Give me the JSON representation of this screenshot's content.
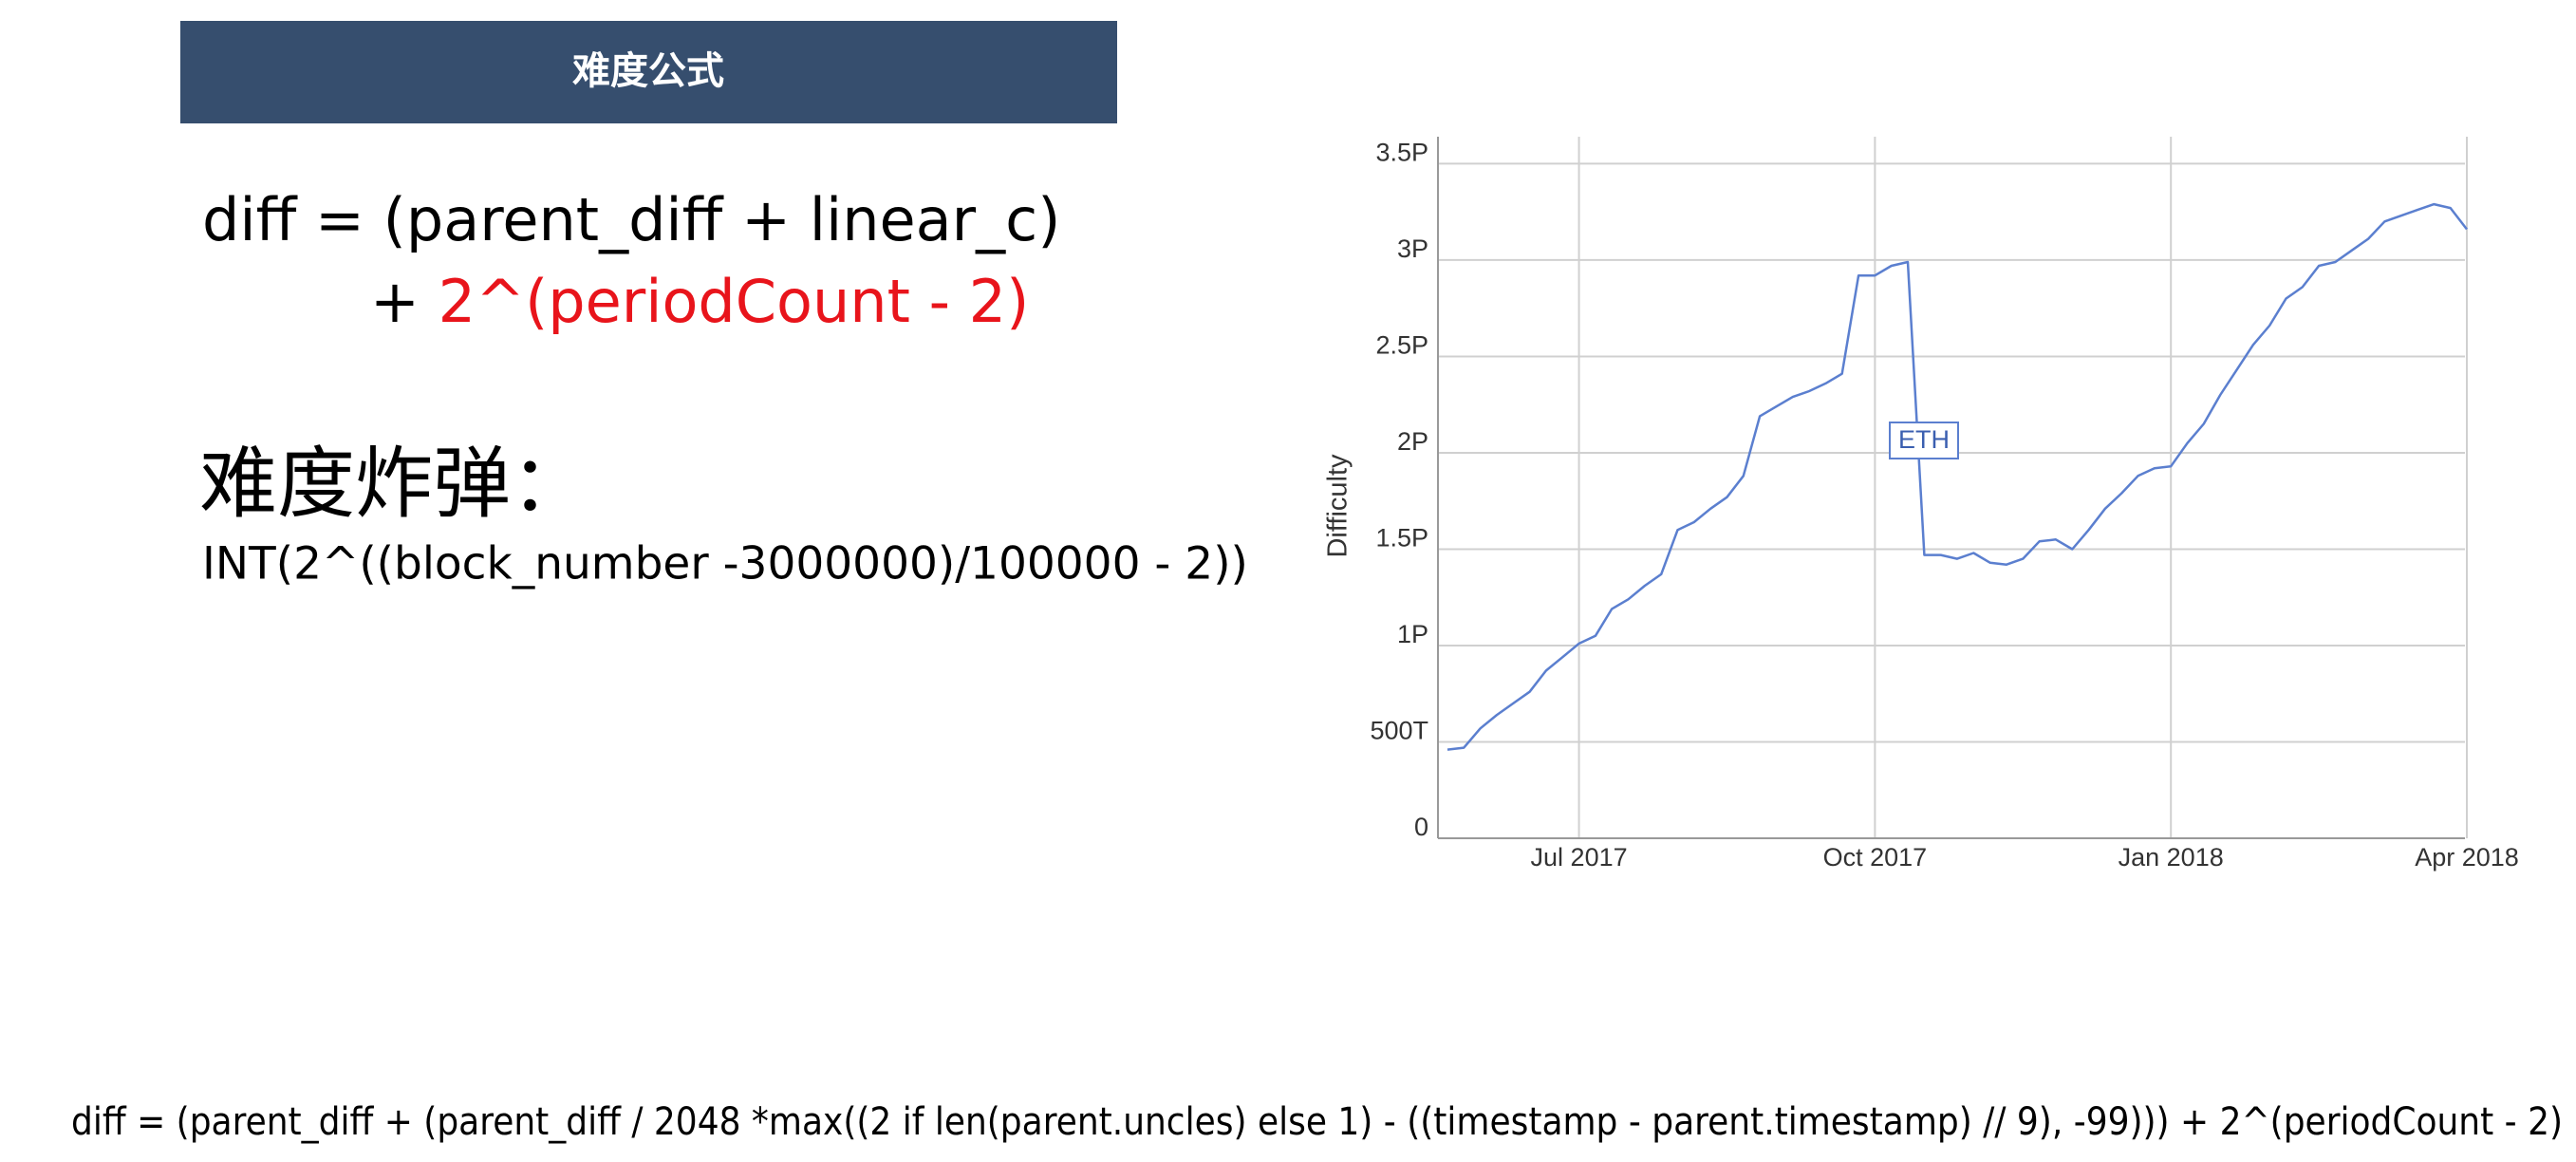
{
  "slide": {
    "title": "难度公式",
    "formula": {
      "line1": "diff = (parent_diff + linear_c)",
      "plus": "+ ",
      "highlight": "2^(periodCount - 2)"
    },
    "bomb": {
      "title": "难度炸弹：",
      "formula": "INT(2^((block_number -3000000)/100000 - 2))"
    },
    "footer_formula": "diff = (parent_diff + (parent_diff / 2048 *max((2 if len(parent.uncles) else 1) - ((timestamp - parent.timestamp) // 9), -99))) + 2^(periodCount - 2)"
  },
  "chart_data": {
    "type": "line",
    "y_label": "Difficulty",
    "annotation": "ETH",
    "categories": [
      null,
      null,
      null,
      null,
      null,
      null,
      null,
      null,
      "Jul 2017",
      null,
      null,
      null,
      null,
      null,
      null,
      null,
      null,
      null,
      null,
      null,
      null,
      null,
      null,
      null,
      null,
      null,
      "Oct 2017",
      null,
      null,
      null,
      null,
      null,
      null,
      null,
      null,
      null,
      null,
      null,
      null,
      null,
      null,
      null,
      null,
      null,
      "Jan 2018",
      null,
      null,
      null,
      null,
      null,
      null,
      null,
      null,
      null,
      null,
      null,
      null,
      null,
      null,
      null,
      null,
      null,
      "Apr 2018"
    ],
    "series": [
      {
        "name": "Difficulty",
        "color": "#5b7fcf",
        "values": [
          0.46,
          0.47,
          0.57,
          0.64,
          0.7,
          0.76,
          0.87,
          0.94,
          1.01,
          1.05,
          1.19,
          1.24,
          1.31,
          1.37,
          1.6,
          1.64,
          1.71,
          1.77,
          1.88,
          2.19,
          2.24,
          2.29,
          2.32,
          2.36,
          2.41,
          2.92,
          2.92,
          2.97,
          2.99,
          1.47,
          1.47,
          1.45,
          1.48,
          1.43,
          1.42,
          1.45,
          1.54,
          1.55,
          1.5,
          1.6,
          1.71,
          1.79,
          1.88,
          1.92,
          1.93,
          2.05,
          2.15,
          2.3,
          2.43,
          2.56,
          2.66,
          2.8,
          2.86,
          2.97,
          2.99,
          3.05,
          3.11,
          3.2,
          3.23,
          3.26,
          3.29,
          3.27,
          3.16
        ]
      }
    ],
    "ylim": [
      0,
      3.64
    ],
    "yticks": [
      0,
      {
        "value": 0.5,
        "label": "500T"
      },
      {
        "value": 1,
        "label": "1P"
      },
      {
        "value": 1.5,
        "label": "1.5P"
      },
      {
        "value": 2,
        "label": "2P"
      },
      {
        "value": 2.5,
        "label": "2.5P"
      },
      {
        "value": 3,
        "label": "3P"
      },
      {
        "value": 3.5,
        "label": "3.5P"
      }
    ],
    "grid": true
  }
}
